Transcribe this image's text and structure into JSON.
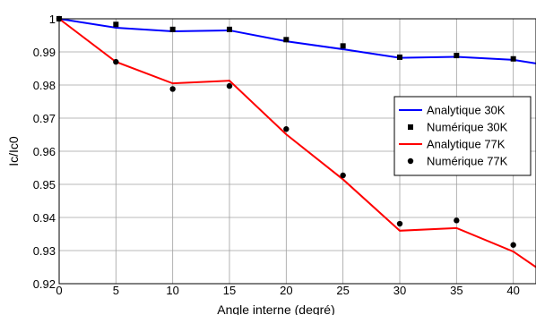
{
  "chart_data": {
    "type": "line",
    "title": "",
    "xlabel": "Angle interne (degré)",
    "ylabel": "Ic/Ic0",
    "xlim": [
      0,
      42
    ],
    "ylim": [
      0.92,
      1.0
    ],
    "xticks": [
      0,
      5,
      10,
      15,
      20,
      25,
      30,
      35,
      40
    ],
    "yticks": [
      0.92,
      0.93,
      0.94,
      0.95,
      0.96,
      0.97,
      0.98,
      0.99,
      1
    ],
    "xtick_labels": [
      "0",
      "5",
      "10",
      "15",
      "20",
      "25",
      "30",
      "35",
      "40"
    ],
    "ytick_labels": [
      "0.92",
      "0.93",
      "0.94",
      "0.95",
      "0.96",
      "0.97",
      "0.98",
      "0.99",
      "1"
    ],
    "grid": true,
    "legend_position": "right",
    "series": [
      {
        "name": "Analytique 30K",
        "kind": "line",
        "color": "#0000ff",
        "x": [
          0,
          5,
          10,
          15,
          20,
          25,
          30,
          35,
          40,
          42
        ],
        "y": [
          1.0,
          0.9973,
          0.9962,
          0.9965,
          0.9932,
          0.9908,
          0.9882,
          0.9885,
          0.9876,
          0.9865
        ]
      },
      {
        "name": "Numérique 30K",
        "kind": "marker",
        "marker": "square",
        "color": "#000000",
        "x": [
          0,
          5,
          10,
          15,
          20,
          25,
          30,
          35,
          40
        ],
        "y": [
          1.0,
          0.9983,
          0.9968,
          0.9968,
          0.9937,
          0.9918,
          0.9884,
          0.9889,
          0.9879
        ]
      },
      {
        "name": "Analytique 77K",
        "kind": "line",
        "color": "#ff0000",
        "x": [
          0,
          5,
          10,
          15,
          20,
          25,
          30,
          35,
          40,
          42
        ],
        "y": [
          1.0,
          0.987,
          0.9805,
          0.9813,
          0.9651,
          0.9515,
          0.936,
          0.9368,
          0.9297,
          0.925
        ]
      },
      {
        "name": "Numérique 77K",
        "kind": "marker",
        "marker": "circle",
        "color": "#000000",
        "x": [
          0,
          5,
          10,
          15,
          20,
          25,
          30,
          35,
          40
        ],
        "y": [
          1.0,
          0.987,
          0.9788,
          0.9797,
          0.9667,
          0.9527,
          0.9381,
          0.9391,
          0.9317
        ]
      }
    ]
  }
}
